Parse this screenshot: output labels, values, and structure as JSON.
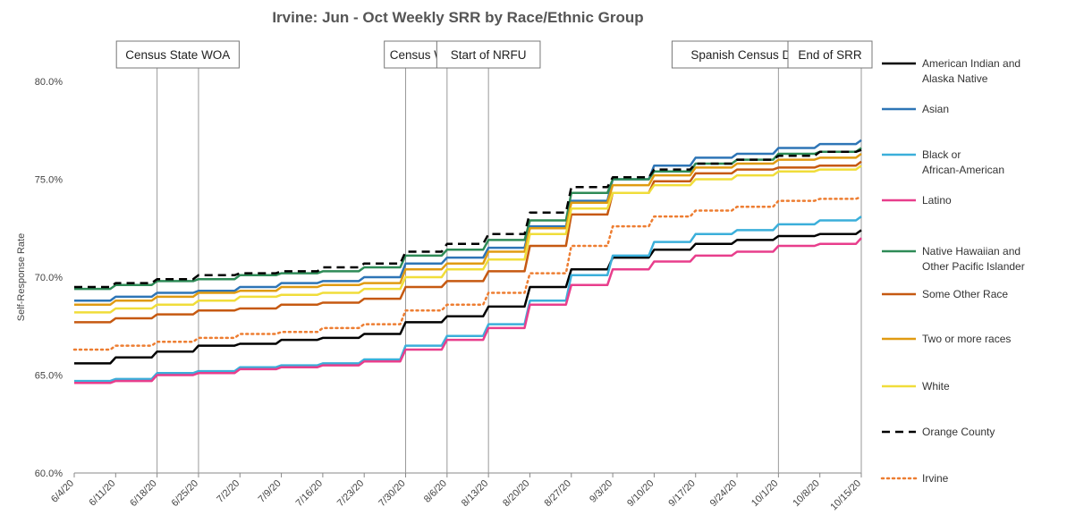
{
  "chart_data": {
    "type": "line",
    "title": "Irvine: Jun - Oct Weekly SRR by Race/Ethnic Group",
    "xlabel": "",
    "ylabel": "Self-Response Rate",
    "ylim": [
      60,
      80
    ],
    "yticks": [
      "60.0%",
      "65.0%",
      "70.0%",
      "75.0%",
      "80.0%"
    ],
    "ytick_values": [
      60,
      65,
      70,
      75,
      80
    ],
    "x_start": "6/4/20",
    "x_end": "10/15/20",
    "x_tick_labels": [
      "6/4/20",
      "6/11/20",
      "6/18/20",
      "6/25/20",
      "7/2/20",
      "7/9/20",
      "7/16/20",
      "7/23/20",
      "7/30/20",
      "8/6/20",
      "8/13/20",
      "8/20/20",
      "8/27/20",
      "9/3/20",
      "9/10/20",
      "9/17/20",
      "9/24/20",
      "10/1/20",
      "10/8/20",
      "10/15/20"
    ],
    "legend_position": "right",
    "series_x": [
      "6/4/20",
      "6/11/20",
      "6/18/20",
      "6/25/20",
      "7/2/20",
      "7/9/20",
      "7/16/20",
      "7/23/20",
      "7/30/20",
      "8/6/20",
      "8/13/20",
      "8/20/20",
      "8/27/20",
      "9/3/20",
      "9/10/20",
      "9/17/20",
      "9/24/20",
      "10/1/20",
      "10/8/20",
      "10/15/20"
    ],
    "series": [
      {
        "name": "American Indian and Alaska Native",
        "color": "#000000",
        "style": "solid",
        "values": [
          65.6,
          65.9,
          66.2,
          66.5,
          66.6,
          66.8,
          66.9,
          67.1,
          67.7,
          68.0,
          68.5,
          69.5,
          70.4,
          71.0,
          71.4,
          71.7,
          71.9,
          72.1,
          72.2,
          72.4
        ]
      },
      {
        "name": "Asian",
        "color": "#2E75B6",
        "style": "solid",
        "values": [
          68.8,
          69.0,
          69.2,
          69.3,
          69.5,
          69.7,
          69.8,
          70.0,
          70.7,
          71.0,
          71.5,
          72.6,
          73.9,
          75.0,
          75.7,
          76.1,
          76.3,
          76.6,
          76.8,
          77.0
        ]
      },
      {
        "name": "Black or African-American",
        "color": "#3BAFDA",
        "style": "solid",
        "values": [
          64.7,
          64.8,
          65.1,
          65.2,
          65.4,
          65.5,
          65.6,
          65.8,
          66.5,
          67.0,
          67.6,
          68.8,
          70.1,
          71.1,
          71.8,
          72.2,
          72.4,
          72.7,
          72.9,
          73.1
        ]
      },
      {
        "name": "Latino",
        "color": "#E83E8C",
        "style": "solid",
        "values": [
          64.6,
          64.7,
          65.0,
          65.1,
          65.3,
          65.4,
          65.5,
          65.7,
          66.3,
          66.8,
          67.4,
          68.6,
          69.6,
          70.4,
          70.8,
          71.1,
          71.3,
          71.6,
          71.7,
          72.0
        ]
      },
      {
        "name": "Native Hawaiian and Other Pacific Islander",
        "color": "#2E8B57",
        "style": "solid",
        "values": [
          69.4,
          69.6,
          69.8,
          69.9,
          70.1,
          70.2,
          70.3,
          70.5,
          71.1,
          71.4,
          71.9,
          72.9,
          74.3,
          75.0,
          75.4,
          75.8,
          76.0,
          76.3,
          76.4,
          76.6
        ]
      },
      {
        "name": "Some Other Race",
        "color": "#C65911",
        "style": "solid",
        "values": [
          67.7,
          67.9,
          68.1,
          68.3,
          68.4,
          68.6,
          68.7,
          68.9,
          69.5,
          69.8,
          70.3,
          71.6,
          73.2,
          74.3,
          74.9,
          75.3,
          75.5,
          75.6,
          75.7,
          75.9
        ]
      },
      {
        "name": "Two or more races",
        "color": "#E09B12",
        "style": "solid",
        "values": [
          68.6,
          68.8,
          69.0,
          69.2,
          69.3,
          69.5,
          69.6,
          69.7,
          70.4,
          70.7,
          71.3,
          72.5,
          73.8,
          74.7,
          75.2,
          75.6,
          75.8,
          76.0,
          76.1,
          76.3
        ]
      },
      {
        "name": "White",
        "color": "#F0DD3A",
        "style": "solid",
        "values": [
          68.2,
          68.4,
          68.6,
          68.8,
          69.0,
          69.1,
          69.2,
          69.4,
          70.0,
          70.4,
          70.9,
          72.2,
          73.5,
          74.3,
          74.7,
          75.0,
          75.2,
          75.4,
          75.5,
          75.7
        ]
      },
      {
        "name": "Orange County",
        "color": "#000000",
        "style": "dashed",
        "values": [
          69.5,
          69.7,
          69.9,
          70.1,
          70.2,
          70.3,
          70.5,
          70.7,
          71.3,
          71.7,
          72.2,
          73.3,
          74.6,
          75.1,
          75.5,
          75.8,
          76.0,
          76.2,
          76.4,
          76.5
        ]
      },
      {
        "name": "Irvine",
        "color": "#ED7D31",
        "style": "dotted",
        "values": [
          66.3,
          66.5,
          66.7,
          66.9,
          67.1,
          67.2,
          67.4,
          67.6,
          68.3,
          68.6,
          69.2,
          70.2,
          71.6,
          72.6,
          73.1,
          73.4,
          73.6,
          73.9,
          74.0,
          74.1
        ]
      }
    ],
    "annotations": [
      {
        "label": "Census State WOA",
        "dates": [
          "6/18/20",
          "6/25/20"
        ]
      },
      {
        "label": "Census WOA",
        "dates": [
          "7/30/20",
          "8/6/20"
        ]
      },
      {
        "label": "Start of NRFU",
        "dates": [
          "8/13/20"
        ]
      },
      {
        "label": "Spanish Census Day of Action",
        "dates": [
          "10/1/20"
        ]
      },
      {
        "label": "End of SRR",
        "dates": [
          "10/15/20"
        ]
      }
    ]
  }
}
